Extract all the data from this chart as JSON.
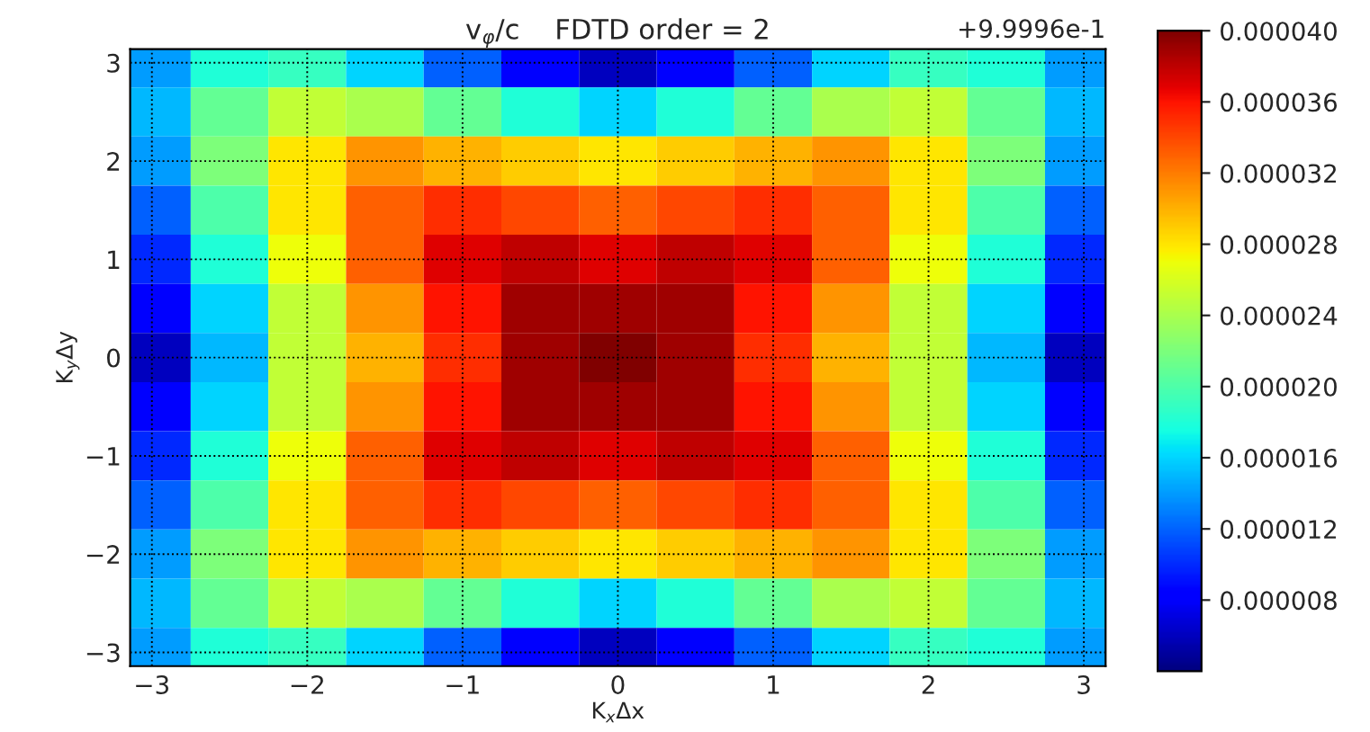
{
  "chart_data": {
    "type": "heatmap",
    "title": "v$_{φ}$/c    FDTD order = 2",
    "xlabel": "K$_{x}$Δx",
    "ylabel": "K$_{y}$Δy",
    "annotations": [
      "+9.9996e-1"
    ],
    "x": [
      -3,
      -2.5,
      -2,
      -1.5,
      -1,
      -0.5,
      0,
      0.5,
      1,
      1.5,
      2,
      2.5,
      3
    ],
    "y": [
      3,
      2.5,
      2,
      1.5,
      1,
      0.5,
      0,
      -0.5,
      -1,
      -1.5,
      -2,
      -2.5,
      -3
    ],
    "xlim": [
      -3.14,
      3.14
    ],
    "ylim": [
      -3.14,
      3.14
    ],
    "xticks": [
      -3,
      -2,
      -1,
      0,
      1,
      2,
      3
    ],
    "yticks": [
      -3,
      -2,
      -1,
      0,
      1,
      2,
      3
    ],
    "grid": true,
    "clim": [
      4e-06,
      4e-05
    ],
    "cticks": [
      {
        "value": 8e-06,
        "label": "0.000008"
      },
      {
        "value": 1.2e-05,
        "label": "0.000012"
      },
      {
        "value": 1.6e-05,
        "label": "0.000016"
      },
      {
        "value": 2e-05,
        "label": "0.000020"
      },
      {
        "value": 2.4e-05,
        "label": "0.000024"
      },
      {
        "value": 2.8e-05,
        "label": "0.000028"
      },
      {
        "value": 3.2e-05,
        "label": "0.000032"
      },
      {
        "value": 3.6e-05,
        "label": "0.000036"
      },
      {
        "value": 4e-05,
        "label": "0.000040"
      }
    ],
    "cells": [
      [
        1.4e-05,
        1.8e-05,
        1.9e-05,
        1.6e-05,
        1.2e-05,
        8e-06,
        6e-06,
        8e-06,
        1.2e-05,
        1.6e-05,
        1.9e-05,
        1.8e-05,
        1.4e-05
      ],
      [
        1.5e-05,
        2.1e-05,
        2.5e-05,
        2.4e-05,
        2.1e-05,
        1.8e-05,
        1.6e-05,
        1.8e-05,
        2.1e-05,
        2.4e-05,
        2.5e-05,
        2.1e-05,
        1.5e-05
      ],
      [
        1.4e-05,
        2.2e-05,
        2.8e-05,
        3.1e-05,
        3e-05,
        2.9e-05,
        2.8e-05,
        2.9e-05,
        3e-05,
        3.1e-05,
        2.8e-05,
        2.2e-05,
        1.4e-05
      ],
      [
        1.2e-05,
        2e-05,
        2.8e-05,
        3.3e-05,
        3.5e-05,
        3.4e-05,
        3.3e-05,
        3.4e-05,
        3.5e-05,
        3.3e-05,
        2.8e-05,
        2e-05,
        1.2e-05
      ],
      [
        1e-05,
        1.8e-05,
        2.7e-05,
        3.3e-05,
        3.7e-05,
        3.8e-05,
        3.7e-05,
        3.8e-05,
        3.7e-05,
        3.3e-05,
        2.7e-05,
        1.8e-05,
        1e-05
      ],
      [
        8e-06,
        1.6e-05,
        2.5e-05,
        3.1e-05,
        3.6e-05,
        3.9e-05,
        3.9e-05,
        3.9e-05,
        3.6e-05,
        3.1e-05,
        2.5e-05,
        1.6e-05,
        8e-06
      ],
      [
        6e-06,
        1.5e-05,
        2.5e-05,
        3e-05,
        3.5e-05,
        3.9e-05,
        4e-05,
        3.9e-05,
        3.5e-05,
        3e-05,
        2.5e-05,
        1.5e-05,
        6e-06
      ],
      [
        8e-06,
        1.6e-05,
        2.5e-05,
        3.1e-05,
        3.6e-05,
        3.9e-05,
        3.9e-05,
        3.9e-05,
        3.6e-05,
        3.1e-05,
        2.5e-05,
        1.6e-05,
        8e-06
      ],
      [
        1e-05,
        1.8e-05,
        2.7e-05,
        3.3e-05,
        3.7e-05,
        3.8e-05,
        3.7e-05,
        3.8e-05,
        3.7e-05,
        3.3e-05,
        2.7e-05,
        1.8e-05,
        1e-05
      ],
      [
        1.2e-05,
        2e-05,
        2.8e-05,
        3.3e-05,
        3.5e-05,
        3.4e-05,
        3.3e-05,
        3.4e-05,
        3.5e-05,
        3.3e-05,
        2.8e-05,
        2e-05,
        1.2e-05
      ],
      [
        1.4e-05,
        2.2e-05,
        2.8e-05,
        3.1e-05,
        3e-05,
        2.9e-05,
        2.8e-05,
        2.9e-05,
        3e-05,
        3.1e-05,
        2.8e-05,
        2.2e-05,
        1.4e-05
      ],
      [
        1.5e-05,
        2.1e-05,
        2.5e-05,
        2.4e-05,
        2.1e-05,
        1.8e-05,
        1.6e-05,
        1.8e-05,
        2.1e-05,
        2.4e-05,
        2.5e-05,
        2.1e-05,
        1.5e-05
      ],
      [
        1.4e-05,
        1.8e-05,
        1.9e-05,
        1.6e-05,
        1.2e-05,
        8e-06,
        6e-06,
        8e-06,
        1.2e-05,
        1.6e-05,
        1.9e-05,
        1.8e-05,
        1.4e-05
      ]
    ]
  }
}
